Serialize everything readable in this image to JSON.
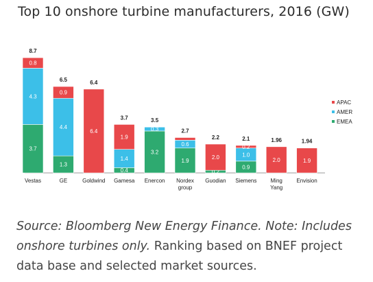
{
  "title": "Top 10 onshore turbine manufacturers, 2016 (GW)",
  "caption": {
    "source_italic": "Source: Bloomberg New Energy Finance. Note: Includes onshore turbines only.",
    "rest": " Ranking based on BNEF project data base and selected market sources."
  },
  "colors": {
    "APAC": "#e8484a",
    "AMER": "#3cbfe8",
    "EMEA": "#2eaa70",
    "text": "#222222"
  },
  "chart_data": {
    "type": "bar",
    "stacked": true,
    "categories": [
      "Vestas",
      "GE",
      "Goldwind",
      "Gamesa",
      "Enercon",
      "Nordex group",
      "Guodian",
      "Siemens",
      "Ming Yang",
      "Envision"
    ],
    "totals": [
      "8.7",
      "6.5",
      "6.4",
      "3.7",
      "3.5",
      "2.7",
      "2.2",
      "2.1",
      "1.96",
      "1.94"
    ],
    "series": [
      {
        "name": "EMEA",
        "values": [
          3.7,
          1.3,
          0,
          0.4,
          3.2,
          1.9,
          0.2,
          0.9,
          0,
          0
        ],
        "labels": [
          "3.7",
          "1.3",
          "",
          "0.4",
          "3.2",
          "1.9",
          "0.2",
          "0.9",
          "",
          ""
        ]
      },
      {
        "name": "AMER",
        "values": [
          4.3,
          4.4,
          0,
          1.4,
          0.3,
          0.6,
          0,
          1.0,
          0,
          0
        ],
        "labels": [
          "4.3",
          "4.4",
          "",
          "1.4",
          "0.3",
          "0.6",
          "",
          "1.0",
          "",
          ""
        ]
      },
      {
        "name": "APAC",
        "values": [
          0.8,
          0.9,
          6.4,
          1.9,
          0,
          0.2,
          2.0,
          0.2,
          2.0,
          1.9
        ],
        "labels": [
          "0.8",
          "0.9",
          "6.4",
          "1.9",
          "",
          "",
          "2.0",
          "0.2",
          "2.0",
          "1.9"
        ]
      }
    ],
    "legend": [
      "APAC",
      "AMER",
      "EMEA"
    ],
    "legend_position": "right",
    "ylim": [
      0,
      8.7
    ],
    "grid": false
  }
}
